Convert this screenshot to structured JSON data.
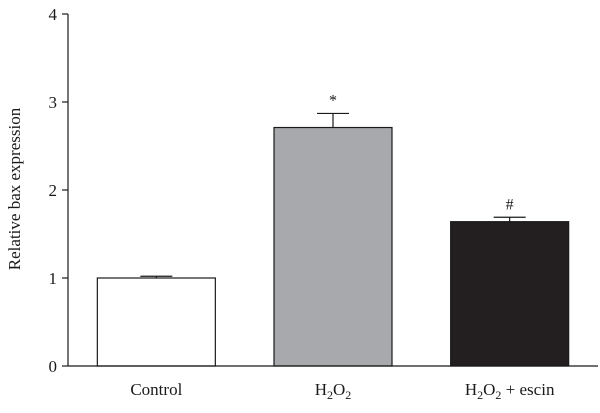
{
  "chart_data": {
    "type": "bar",
    "title": "",
    "xlabel": "",
    "ylabel": "Relative bax expression",
    "ylim": [
      0,
      4
    ],
    "yticks": [
      0,
      1,
      2,
      3,
      4
    ],
    "grid": false,
    "categories": [
      {
        "label": "Control",
        "parts": [
          {
            "t": "Control"
          }
        ]
      },
      {
        "label": "H2O2",
        "parts": [
          {
            "t": "H"
          },
          {
            "t": "2",
            "sub": true
          },
          {
            "t": "O"
          },
          {
            "t": "2",
            "sub": true
          }
        ]
      },
      {
        "label": "H2O2 + escin",
        "parts": [
          {
            "t": "H"
          },
          {
            "t": "2",
            "sub": true
          },
          {
            "t": "O"
          },
          {
            "t": "2",
            "sub": true
          },
          {
            "t": " + escin"
          }
        ]
      }
    ],
    "values": [
      1.0,
      2.71,
      1.64
    ],
    "errors": [
      0.02,
      0.16,
      0.05
    ],
    "annotations": [
      "",
      "*",
      "#"
    ],
    "colors": [
      "#ffffff",
      "#a7a9ac",
      "#231f20"
    ]
  }
}
